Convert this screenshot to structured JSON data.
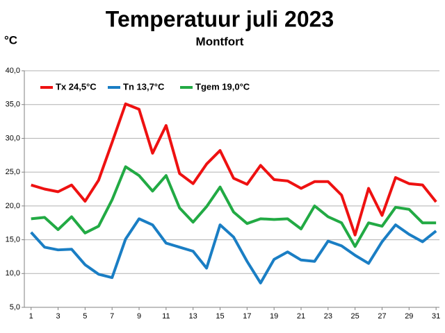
{
  "chart_data": {
    "type": "line",
    "title": "Temperatuur juli 2023",
    "subtitle": "Montfort",
    "y_label": "°C",
    "x": [
      1,
      2,
      3,
      4,
      5,
      6,
      7,
      8,
      9,
      10,
      11,
      12,
      13,
      14,
      15,
      16,
      17,
      18,
      19,
      20,
      21,
      22,
      23,
      24,
      25,
      26,
      27,
      28,
      29,
      30,
      31
    ],
    "xlim": [
      0.5,
      31.25
    ],
    "xticks": [
      1,
      3,
      5,
      7,
      9,
      11,
      13,
      15,
      17,
      19,
      21,
      23,
      25,
      27,
      29,
      31
    ],
    "ylim": [
      5,
      40
    ],
    "yticks": [
      {
        "value": 5,
        "label": "5,0"
      },
      {
        "value": 10,
        "label": "10,0"
      },
      {
        "value": 15,
        "label": "15,0"
      },
      {
        "value": 20,
        "label": "20,0"
      },
      {
        "value": 25,
        "label": "25,0"
      },
      {
        "value": 30,
        "label": "30,0"
      },
      {
        "value": 35,
        "label": "35,0"
      },
      {
        "value": 40,
        "label": "40,0"
      }
    ],
    "grid": true,
    "legend": "top-left",
    "series": [
      {
        "name": "Tx 24,5°C",
        "color": "#ee1111",
        "values": [
          23.1,
          22.5,
          22.1,
          23.1,
          20.7,
          23.8,
          29.4,
          35.1,
          34.3,
          27.8,
          31.9,
          24.8,
          23.3,
          26.2,
          28.2,
          24.1,
          23.2,
          26.0,
          23.9,
          23.7,
          22.6,
          23.6,
          23.6,
          21.6,
          15.7,
          22.6,
          18.6,
          24.2,
          23.3,
          23.1,
          20.6
        ]
      },
      {
        "name": "Tn 13,7°C",
        "color": "#1a7ec4",
        "values": [
          16.1,
          13.9,
          13.5,
          13.6,
          11.3,
          9.9,
          9.4,
          15.1,
          18.1,
          17.2,
          14.5,
          13.9,
          13.3,
          10.8,
          17.2,
          15.4,
          11.8,
          8.6,
          12.1,
          13.2,
          12.0,
          11.8,
          14.8,
          14.1,
          12.7,
          11.5,
          14.7,
          17.2,
          15.8,
          14.7,
          16.3
        ]
      },
      {
        "name": "Tgem 19,0°C",
        "color": "#22aa44",
        "values": [
          18.1,
          18.3,
          16.5,
          18.4,
          16.0,
          17.0,
          20.9,
          25.8,
          24.5,
          22.2,
          24.5,
          19.7,
          17.6,
          19.9,
          22.8,
          19.1,
          17.4,
          18.1,
          18.0,
          18.1,
          16.6,
          20.0,
          18.4,
          17.5,
          14.0,
          17.5,
          17.0,
          19.8,
          19.5,
          17.5,
          17.5
        ]
      }
    ]
  }
}
